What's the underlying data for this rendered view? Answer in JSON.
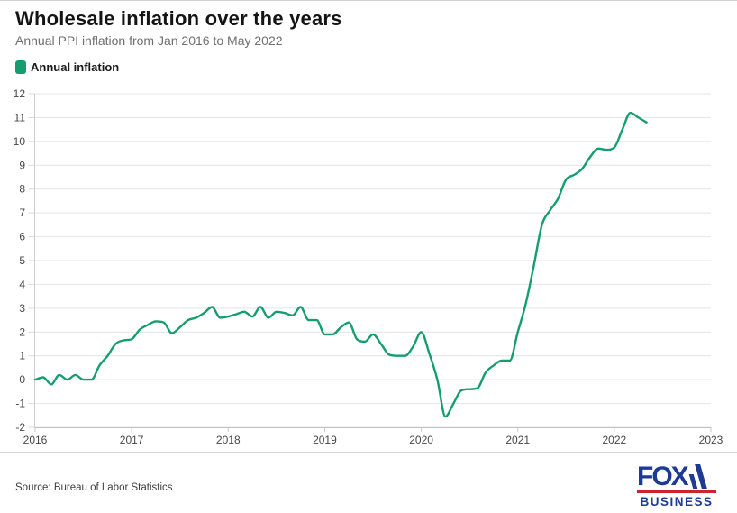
{
  "header": {
    "title": "Wholesale inflation over the years",
    "subtitle": "Annual PPI inflation from Jan 2016 to May 2022"
  },
  "legend": {
    "label": "Annual inflation",
    "swatch_color": "#149e6f"
  },
  "chart_data": {
    "type": "line",
    "title": "Wholesale inflation over the years",
    "subtitle": "Annual PPI inflation from Jan 2016 to May 2022",
    "xlabel": "",
    "ylabel": "",
    "ylim": [
      -2,
      12
    ],
    "y_ticks": [
      12,
      11,
      10,
      9,
      8,
      7,
      6,
      5,
      4,
      3,
      2,
      1,
      0,
      -1,
      -2
    ],
    "x_tick_labels": [
      "2016",
      "2017",
      "2018",
      "2019",
      "2020",
      "2021",
      "2022",
      "2023"
    ],
    "x_months_total": 84,
    "grid": "horizontal",
    "legend_position": "top-left",
    "series": [
      {
        "name": "Annual inflation",
        "color": "#149e6f",
        "unit": "percent",
        "start": "2016-01",
        "end": "2022-05",
        "values": [
          0.0,
          0.1,
          -0.2,
          0.2,
          0.0,
          0.2,
          0.0,
          0.0,
          0.6,
          1.0,
          1.5,
          1.65,
          1.7,
          2.1,
          2.3,
          2.45,
          2.4,
          1.95,
          2.2,
          2.5,
          2.6,
          2.8,
          3.05,
          2.6,
          2.65,
          2.75,
          2.85,
          2.65,
          3.05,
          2.6,
          2.85,
          2.8,
          2.7,
          3.05,
          2.5,
          2.5,
          1.9,
          1.9,
          2.2,
          2.4,
          1.7,
          1.6,
          1.9,
          1.5,
          1.05,
          1.0,
          1.0,
          1.4,
          2.0,
          1.1,
          0.0,
          -1.55,
          -1.0,
          -0.45,
          -0.4,
          -0.35,
          0.3,
          0.6,
          0.8,
          0.8,
          2.0,
          3.2,
          4.8,
          6.5,
          7.1,
          7.6,
          8.4,
          8.6,
          8.85,
          9.35,
          9.7,
          9.65,
          9.75,
          10.5,
          11.2,
          11.0,
          10.8
        ]
      }
    ]
  },
  "footer": {
    "source": "Source: Bureau of Labor Statistics",
    "logo": {
      "fox": "FOX",
      "business": "BUSINESS",
      "blue": "#1e3b93",
      "red": "#cf2130"
    }
  }
}
